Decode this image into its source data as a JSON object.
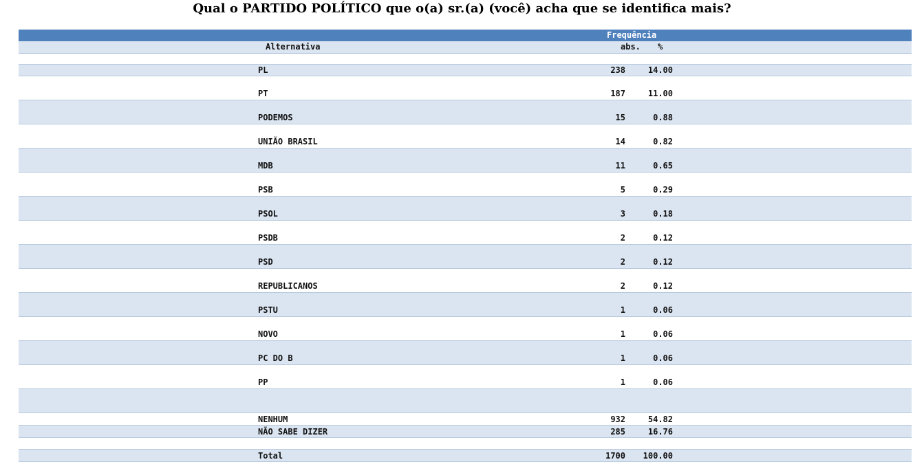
{
  "title": "Qual o PARTIDO POLÍTICO que o(a) sr.(a) (você) acha que se identifica mais?",
  "header": {
    "group": "Frequência",
    "alternativa": "Alternativa",
    "abs": "abs.",
    "pct": "%"
  },
  "rows": [
    {
      "label": "PL",
      "abs": "238",
      "pct": "14.00"
    },
    {
      "label": "PT",
      "abs": "187",
      "pct": "11.00"
    },
    {
      "label": "PODEMOS",
      "abs": "15",
      "pct": "0.88"
    },
    {
      "label": "UNIÃO BRASIL",
      "abs": "14",
      "pct": "0.82"
    },
    {
      "label": "MDB",
      "abs": "11",
      "pct": "0.65"
    },
    {
      "label": "PSB",
      "abs": "5",
      "pct": "0.29"
    },
    {
      "label": "PSOL",
      "abs": "3",
      "pct": "0.18"
    },
    {
      "label": "PSDB",
      "abs": "2",
      "pct": "0.12"
    },
    {
      "label": "PSD",
      "abs": "2",
      "pct": "0.12"
    },
    {
      "label": "REPUBLICANOS",
      "abs": "2",
      "pct": "0.12"
    },
    {
      "label": "PSTU",
      "abs": "1",
      "pct": "0.06"
    },
    {
      "label": "NOVO",
      "abs": "1",
      "pct": "0.06"
    },
    {
      "label": "PC DO B",
      "abs": "1",
      "pct": "0.06"
    },
    {
      "label": "PP",
      "abs": "1",
      "pct": "0.06"
    }
  ],
  "extra_rows": [
    {
      "label": "NENHUM",
      "abs": "932",
      "pct": "54.82"
    },
    {
      "label": "NÃO SABE DIZER",
      "abs": "285",
      "pct": "16.76"
    }
  ],
  "total": {
    "label": "Total",
    "abs": "1700",
    "pct": "100.00"
  },
  "colors": {
    "header_blue": "#4f81bd",
    "row_shade": "#dbe5f1"
  }
}
